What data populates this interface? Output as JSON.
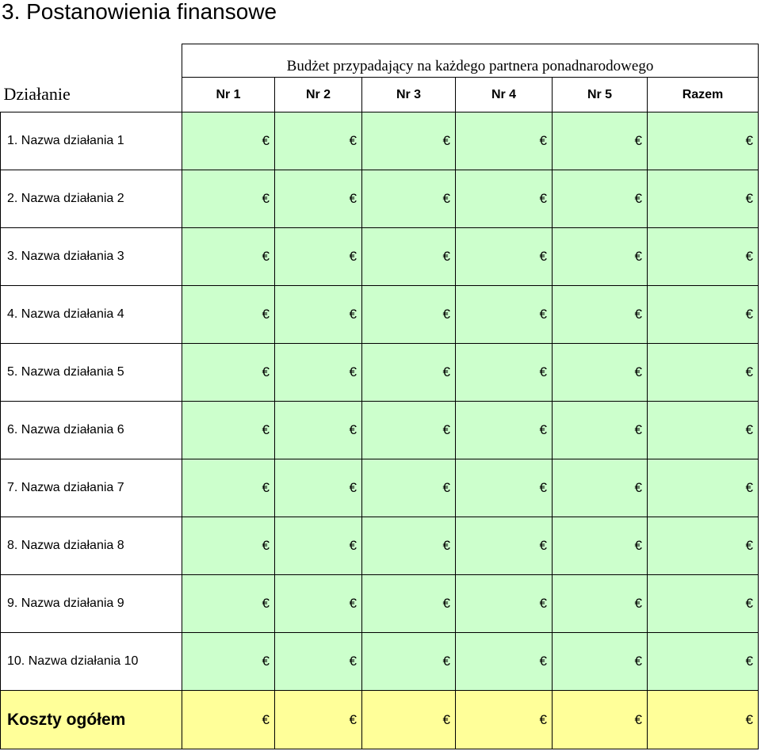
{
  "heading": "3. Postanowienia finansowe",
  "budget_title": "Budżet przypadający na każdego partnera ponadnarodowego",
  "columns": {
    "action": "Działanie",
    "partners": [
      "Nr 1",
      "Nr 2",
      "Nr 3",
      "Nr 4",
      "Nr 5"
    ],
    "total": "Razem"
  },
  "currency_symbol": "€",
  "rows": [
    {
      "label": "1. Nazwa działania 1"
    },
    {
      "label": "2. Nazwa działania 2"
    },
    {
      "label": "3. Nazwa działania 3"
    },
    {
      "label": "4. Nazwa działania 4"
    },
    {
      "label": "5. Nazwa działania 5"
    },
    {
      "label": "6. Nazwa działania 6"
    },
    {
      "label": "7. Nazwa działania 7"
    },
    {
      "label": "8. Nazwa działania 8"
    },
    {
      "label": "9. Nazwa działania 9"
    },
    {
      "label": "10. Nazwa działania 10"
    }
  ],
  "total_row": {
    "label": "Koszty ogółem"
  },
  "colors": {
    "data_cell": "#ccffcc",
    "total_cell": "#ffff99"
  }
}
